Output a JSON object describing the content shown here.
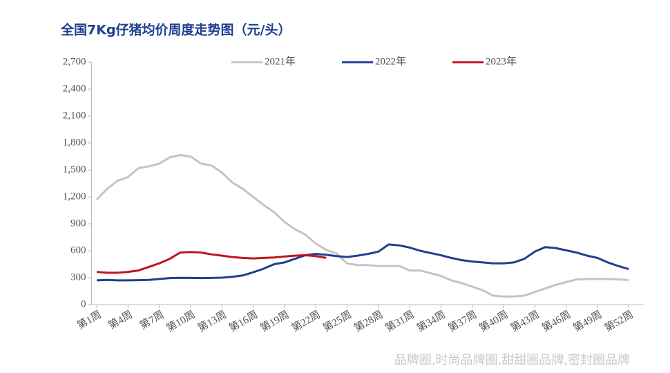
{
  "chart_data": {
    "type": "line",
    "title": "全国7Kg仔猪均价周度走势图（元/头）",
    "categories": [
      "第1周",
      null,
      null,
      "第4周",
      null,
      null,
      "第7周",
      null,
      null,
      "第10周",
      null,
      null,
      "第13周",
      null,
      null,
      "第16周",
      null,
      null,
      "第19周",
      null,
      null,
      "第22周",
      null,
      null,
      "第25周",
      null,
      null,
      "第28周",
      null,
      null,
      "第31周",
      null,
      null,
      "第34周",
      null,
      null,
      "第37周",
      null,
      null,
      "第40周",
      null,
      null,
      "第43周",
      null,
      null,
      "第46周",
      null,
      null,
      "第49周",
      null,
      null,
      "第52周"
    ],
    "series": [
      {
        "name": "2021年",
        "color": "#c4c4c4",
        "values": [
          1170,
          1290,
          1380,
          1420,
          1520,
          1540,
          1570,
          1640,
          1665,
          1650,
          1570,
          1550,
          1470,
          1360,
          1290,
          1200,
          1110,
          1030,
          920,
          840,
          780,
          680,
          610,
          570,
          460,
          440,
          440,
          430,
          430,
          430,
          380,
          380,
          350,
          320,
          270,
          240,
          200,
          160,
          100,
          90,
          90,
          100,
          140,
          180,
          220,
          250,
          280,
          285,
          285,
          285,
          280,
          275
        ]
      },
      {
        "name": "2022年",
        "color": "#1f3f8f",
        "values": [
          270,
          275,
          270,
          270,
          272,
          275,
          285,
          295,
          298,
          297,
          295,
          297,
          300,
          310,
          325,
          360,
          400,
          450,
          470,
          510,
          550,
          565,
          555,
          540,
          530,
          545,
          565,
          590,
          670,
          660,
          635,
          600,
          575,
          550,
          520,
          495,
          480,
          470,
          460,
          460,
          470,
          510,
          590,
          640,
          630,
          605,
          580,
          545,
          520,
          470,
          430,
          395
        ]
      },
      {
        "name": "2023年",
        "color": "#c0141e",
        "values": [
          365,
          355,
          355,
          365,
          380,
          420,
          460,
          510,
          580,
          585,
          580,
          560,
          545,
          530,
          520,
          515,
          520,
          525,
          535,
          545,
          550,
          540,
          520,
          null,
          null,
          null,
          null,
          null,
          null,
          null,
          null,
          null,
          null,
          null,
          null,
          null,
          null,
          null,
          null,
          null,
          null,
          null,
          null,
          null,
          null,
          null,
          null,
          null,
          null,
          null,
          null,
          null
        ]
      }
    ],
    "ylim": [
      0,
      2700
    ],
    "yticks": [
      0,
      300,
      600,
      900,
      {
        "value": 1200,
        "label": "1,200"
      },
      {
        "value": 1500,
        "label": "1,500"
      },
      {
        "value": 1800,
        "label": "1,800"
      },
      {
        "value": 2100,
        "label": "2,100"
      },
      {
        "value": 2400,
        "label": "2,400"
      },
      {
        "value": 2700,
        "label": "2,700"
      }
    ],
    "legend": "top",
    "grid": false,
    "footer": "品牌圈,时尚品牌圈,甜甜圈品牌,密封圈品牌"
  }
}
